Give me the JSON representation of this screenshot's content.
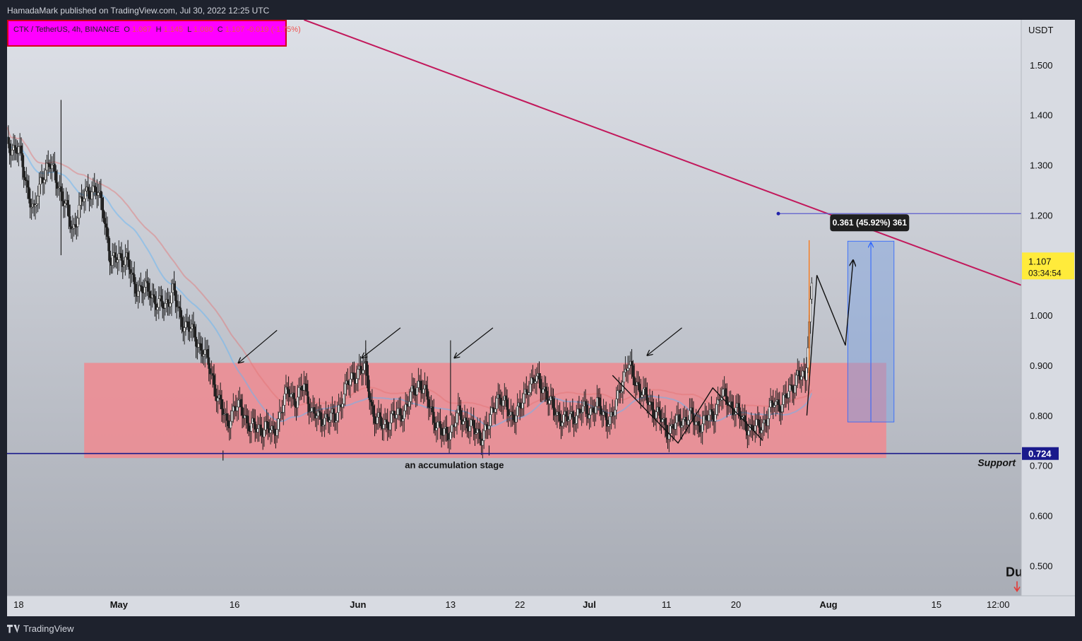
{
  "header": {
    "publisher_line": "HamadaMark published on TradingView.com, Jul 30, 2022 12:25 UTC"
  },
  "legend": {
    "symbol": "CTK / TetherUS, 4h, BINANCE",
    "o_label": "O",
    "o_value": "1.087",
    "h_label": "H",
    "h_value": "1.145",
    "l_label": "L",
    "l_value": "1.080",
    "c_label": "C",
    "c_value": "1.107",
    "change": "-0.019 (-1.75%)"
  },
  "footer": {
    "brand": "TradingView"
  },
  "colors": {
    "background": "#d3d6de",
    "zone": "#f08a90",
    "trendline": "#c2185b",
    "support_line": "#1a1a8c",
    "measure_box": "#7b9fe0",
    "price_badge": "#ffeb3b",
    "support_badge": "#1a1a8c",
    "ema_red": "#e57373",
    "ema_blue": "#64b5f6"
  },
  "annotations": {
    "zone_label": "an accumulation stage",
    "support_label": "Support",
    "measure_label": "0.361 (45.92%) 361",
    "corner_text": "Du"
  },
  "chart_data": {
    "type": "candlestick",
    "currency": "USDT",
    "ylim": [
      0.44,
      1.59
    ],
    "y_ticks": [
      {
        "label": "1.500",
        "value": 1.5
      },
      {
        "label": "1.400",
        "value": 1.4
      },
      {
        "label": "1.300",
        "value": 1.3
      },
      {
        "label": "1.200",
        "value": 1.2
      },
      {
        "label": "1.000",
        "value": 1.0
      },
      {
        "label": "0.900",
        "value": 0.9
      },
      {
        "label": "0.800",
        "value": 0.8
      },
      {
        "label": "0.700",
        "value": 0.7
      },
      {
        "label": "0.600",
        "value": 0.6
      },
      {
        "label": "0.500",
        "value": 0.5
      }
    ],
    "x_ticks": [
      {
        "label": "18",
        "day": 0
      },
      {
        "label": "May",
        "day": 13
      },
      {
        "label": "16",
        "day": 28
      },
      {
        "label": "Jun",
        "day": 44
      },
      {
        "label": "13",
        "day": 56
      },
      {
        "label": "22",
        "day": 65
      },
      {
        "label": "Jul",
        "day": 74
      },
      {
        "label": "11",
        "day": 84
      },
      {
        "label": "20",
        "day": 93
      },
      {
        "label": "Aug",
        "day": 105
      },
      {
        "label": "15",
        "day": 119
      },
      {
        "label": "12:00",
        "day": 127
      }
    ],
    "xlim": [
      -1.5,
      130
    ],
    "current_price": {
      "price": "1.107",
      "value": 1.107,
      "countdown": "03:34:54"
    },
    "support": {
      "price": "0.724",
      "value": 0.724
    },
    "close_path": [
      [
        -1.5,
        1.34
      ],
      [
        0,
        1.33
      ],
      [
        2,
        1.2
      ],
      [
        3,
        1.28
      ],
      [
        4,
        1.3
      ],
      [
        5,
        1.27
      ],
      [
        6,
        1.22
      ],
      [
        7,
        1.17
      ],
      [
        8,
        1.22
      ],
      [
        9,
        1.25
      ],
      [
        10,
        1.25
      ],
      [
        11,
        1.21
      ],
      [
        12,
        1.1
      ],
      [
        13,
        1.12
      ],
      [
        14,
        1.11
      ],
      [
        15,
        1.06
      ],
      [
        16,
        1.05
      ],
      [
        17,
        1.05
      ],
      [
        18,
        1.02
      ],
      [
        19,
        1.02
      ],
      [
        20,
        1.05
      ],
      [
        21,
        0.99
      ],
      [
        22,
        0.98
      ],
      [
        23,
        0.95
      ],
      [
        24,
        0.93
      ],
      [
        25,
        0.88
      ],
      [
        26,
        0.83
      ],
      [
        27,
        0.78
      ],
      [
        28,
        0.82
      ],
      [
        29,
        0.81
      ],
      [
        30,
        0.78
      ],
      [
        31,
        0.77
      ],
      [
        32,
        0.78
      ],
      [
        33,
        0.76
      ],
      [
        34,
        0.81
      ],
      [
        35,
        0.85
      ],
      [
        36,
        0.83
      ],
      [
        37,
        0.86
      ],
      [
        38,
        0.81
      ],
      [
        39,
        0.79
      ],
      [
        40,
        0.8
      ],
      [
        41,
        0.79
      ],
      [
        42,
        0.84
      ],
      [
        43,
        0.87
      ],
      [
        44,
        0.89
      ],
      [
        45,
        0.89
      ],
      [
        46,
        0.8
      ],
      [
        47,
        0.78
      ],
      [
        48,
        0.79
      ],
      [
        49,
        0.8
      ],
      [
        50,
        0.81
      ],
      [
        51,
        0.84
      ],
      [
        52,
        0.87
      ],
      [
        53,
        0.83
      ],
      [
        54,
        0.79
      ],
      [
        55,
        0.76
      ],
      [
        56,
        0.77
      ],
      [
        57,
        0.8
      ],
      [
        58,
        0.79
      ],
      [
        59,
        0.77
      ],
      [
        60,
        0.76
      ],
      [
        61,
        0.78
      ],
      [
        62,
        0.84
      ],
      [
        63,
        0.82
      ],
      [
        64,
        0.8
      ],
      [
        65,
        0.81
      ],
      [
        66,
        0.86
      ],
      [
        67,
        0.87
      ],
      [
        68,
        0.86
      ],
      [
        69,
        0.82
      ],
      [
        70,
        0.8
      ],
      [
        71,
        0.79
      ],
      [
        72,
        0.8
      ],
      [
        73,
        0.81
      ],
      [
        74,
        0.81
      ],
      [
        75,
        0.82
      ],
      [
        76,
        0.8
      ],
      [
        77,
        0.79
      ],
      [
        78,
        0.86
      ],
      [
        79,
        0.9
      ],
      [
        80,
        0.87
      ],
      [
        81,
        0.84
      ],
      [
        82,
        0.82
      ],
      [
        83,
        0.8
      ],
      [
        84,
        0.77
      ],
      [
        85,
        0.78
      ],
      [
        86,
        0.79
      ],
      [
        87,
        0.8
      ],
      [
        88,
        0.78
      ],
      [
        89,
        0.79
      ],
      [
        90,
        0.8
      ],
      [
        91,
        0.84
      ],
      [
        92,
        0.83
      ],
      [
        93,
        0.81
      ],
      [
        94,
        0.79
      ],
      [
        95,
        0.77
      ],
      [
        96,
        0.78
      ],
      [
        97,
        0.79
      ],
      [
        98,
        0.83
      ],
      [
        99,
        0.82
      ],
      [
        100,
        0.85
      ],
      [
        101,
        0.88
      ],
      [
        102,
        0.87
      ],
      [
        103,
        1.107
      ]
    ],
    "spikes": [
      {
        "day": 5.5,
        "high": 1.43,
        "low": 1.12
      },
      {
        "day": 26.5,
        "high": 0.73,
        "low": 0.71
      },
      {
        "day": 45,
        "high": 0.95,
        "low": 0.86
      },
      {
        "day": 56,
        "high": 0.95,
        "low": 0.8
      },
      {
        "day": 61,
        "high": 0.74,
        "low": 0.72
      },
      {
        "day": 102.5,
        "high": 1.15,
        "low": 0.86
      }
    ],
    "trendline": [
      [
        37,
        1.59
      ],
      [
        130,
        1.06
      ]
    ],
    "zone": {
      "day_start": 8.5,
      "day_end": 112.5,
      "high": 0.905,
      "low": 0.715
    },
    "target_line": {
      "day_start": 98.5,
      "day_end": 130,
      "value": 1.203
    },
    "measure": {
      "day_start": 107.5,
      "day_end": 113.5,
      "high": 1.148,
      "low": 0.787,
      "arrow_day": 110.5
    },
    "projection_path": [
      [
        102.2,
        0.8
      ],
      [
        103.5,
        1.08
      ],
      [
        107.2,
        0.94
      ],
      [
        108.2,
        1.11
      ]
    ],
    "zigzag_path": [
      [
        77,
        0.88
      ],
      [
        85.5,
        0.745
      ],
      [
        90,
        0.855
      ],
      [
        96.5,
        0.75
      ]
    ],
    "pointer_arrows": [
      {
        "from": [
          33.5,
          0.97
        ],
        "to": [
          28.5,
          0.905
        ]
      },
      {
        "from": [
          49.5,
          0.975
        ],
        "to": [
          44.5,
          0.915
        ]
      },
      {
        "from": [
          61.5,
          0.975
        ],
        "to": [
          56.5,
          0.915
        ]
      },
      {
        "from": [
          86,
          0.975
        ],
        "to": [
          81.5,
          0.92
        ]
      }
    ]
  }
}
